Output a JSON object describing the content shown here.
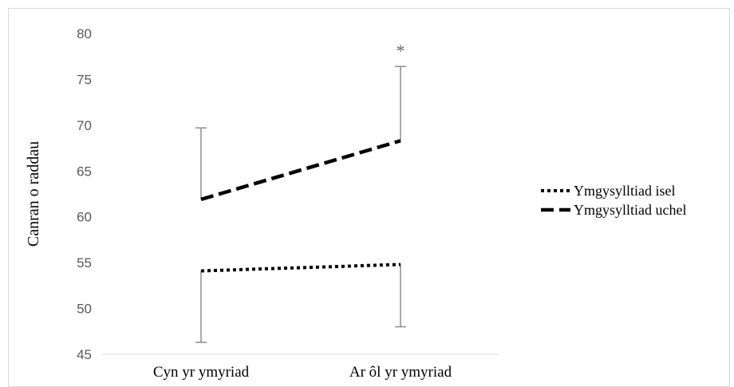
{
  "chart_data": {
    "type": "line",
    "title": "",
    "xlabel": "",
    "ylabel": "Canran o raddau",
    "categories": [
      "Cyn yr ymyriad",
      "Ar ôl yr ymyriad"
    ],
    "ylim": [
      45,
      80
    ],
    "yticks": [
      45,
      50,
      55,
      60,
      65,
      70,
      75,
      80
    ],
    "grid": false,
    "legend_position": "right",
    "series": [
      {
        "name": "Ymgysylltiad isel",
        "style": "dotted",
        "values": [
          54.1,
          54.8
        ],
        "error_lower": [
          46.3,
          48.0
        ],
        "error_upper": null
      },
      {
        "name": "Ymgysylltiad uchel",
        "style": "dashed",
        "values": [
          61.9,
          68.3
        ],
        "error_lower": null,
        "error_upper": [
          69.7,
          76.4
        ]
      }
    ],
    "annotations": [
      {
        "text": "*",
        "category": "Ar ôl yr ymyriad",
        "y": 78.5
      }
    ],
    "colors": {
      "series": "#000000",
      "error_bar": "#8c8c8c",
      "axis": "#d9d9d9",
      "tick_text": "#595959",
      "annotation": "#666666"
    }
  }
}
